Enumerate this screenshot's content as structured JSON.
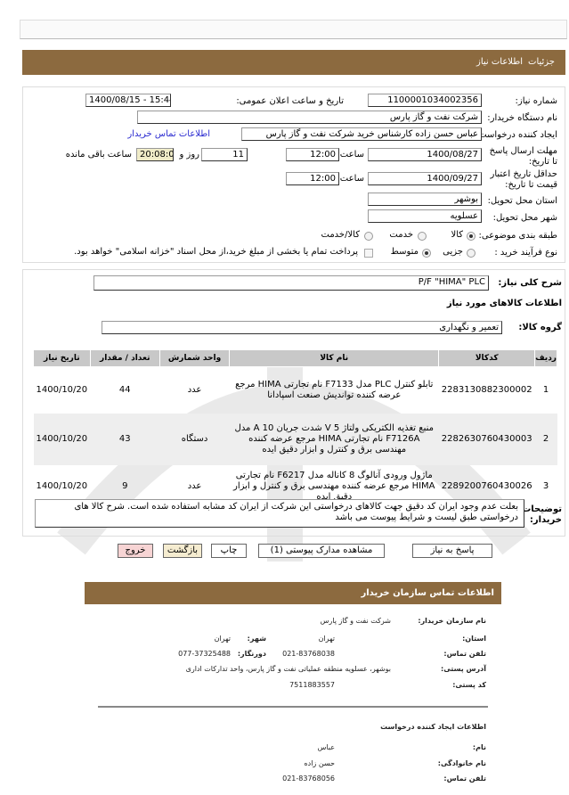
{
  "header": {
    "tab_details": "جزئیات",
    "tab_info": "اطلاعات نیاز"
  },
  "colors": {
    "brand": "#8c6a3f"
  },
  "form": {
    "need_number_label": "شماره نیاز:",
    "need_number": "1100001034002356",
    "announce_label": "تاریخ و ساعت اعلان عمومی:",
    "announce_value": "1400/08/15 - 15:44",
    "buyer_org_label": "نام دستگاه خریدار:",
    "buyer_org": "شرکت نفت و گاز پارس",
    "creator_label": "ایجاد کننده درخواست:",
    "creator": "عباس حسن زاده کارشناس خرید شرکت نفت و گاز پارس",
    "buyer_contact_link": "اطلاعات تماس خریدار",
    "deadline_label": "مهلت ارسال پاسخ تا تاریخ:",
    "deadline_date": "1400/08/27",
    "time_label": "ساعت",
    "deadline_time": "12:00",
    "days": "11",
    "days_label": "روز و",
    "remaining": "20:08:00",
    "remaining_label": "ساعت باقی مانده",
    "validity_label": "حداقل تاریخ اعتبار قیمت تا تاریخ:",
    "validity_date": "1400/09/27",
    "validity_time": "12:00",
    "province_label": "استان محل تحویل:",
    "province": "بوشهر",
    "city_label": "شهر محل تحویل:",
    "city": "عسلویه",
    "category_label": "طبقه بندی موضوعی:",
    "category_options": [
      "کالا",
      "خدمت",
      "کالا/خدمت"
    ],
    "category_selected": "کالا",
    "process_label": "نوع فرآیند خرید :",
    "process_options": [
      "جزیی",
      "متوسط"
    ],
    "process_selected": "متوسط",
    "payment_note": "پرداخت تمام یا بخشی از مبلغ خرید،از محل اسناد \"خزانه اسلامی\" خواهد بود."
  },
  "summary": {
    "label": "شرح کلی نیاز:",
    "value": "P/F \"HIMA\" PLC",
    "goods_info": "اطلاعات کالاهای مورد نیاز",
    "group_label": "گروه کالا:",
    "group_value": "تعمیر و نگهداری"
  },
  "table": {
    "headers": [
      "ردیف",
      "کدکالا",
      "نام کالا",
      "واحد شمارش",
      "تعداد / مقدار",
      "تاریخ نیاز"
    ],
    "rows": [
      {
        "row": "1",
        "code": "2283130882300002",
        "name": "تابلو کنترل PLC مدل F7133 نام تجارتی HIMA مرجع عرضه کننده توانديش صنعت اسپادانا",
        "unit": "عدد",
        "qty": "44",
        "date": "1400/10/20"
      },
      {
        "row": "2",
        "code": "2282630760430003",
        "name": "منبع تغذیه الکتریکی ولتاژ 5 V شدت جریان 10 A مدل F7126A نام تجارتی HIMA مرجع عرضه کننده مهندسی برق و کنترل و ابزار دقیق ایده",
        "unit": "دستگاه",
        "qty": "43",
        "date": "1400/10/20"
      },
      {
        "row": "3",
        "code": "2289200760430026",
        "name": "ماژول ورودی آنالوگ 8 کاناله مدل F6217 نام تجارتی HIMA مرجع عرضه کننده مهندسی برق و کنترل و ابزار دقیق ایده",
        "unit": "عدد",
        "qty": "9",
        "date": "1400/10/20"
      }
    ]
  },
  "notes": {
    "label": "توضیحات خریدار:",
    "value": "بعلت عدم وجود ایران کد دقیق جهت کالاهای درخواستی این شرکت از ایران کد مشابه استفاده شده است. شرح کالا های درخواستی طبق لیست و شرایط پیوست می باشد"
  },
  "buttons": {
    "reply": "پاسخ به نیاز",
    "attachments": "مشاهده مدارک پیوستی (1)",
    "print": "چاپ",
    "back": "بازگشت",
    "exit": "خروج"
  },
  "contact": {
    "title": "اطلاعات تماس سازمان خریدار",
    "org_label": "نام سازمان خریدار:",
    "org": "شرکت نفت و گاز پارس",
    "province_label": "استان:",
    "province": "تهران",
    "city_label": "شهر:",
    "city": "تهران",
    "phone_label": "تلفن تماس:",
    "phone": "021-83768038",
    "fax_label": "دورنگار:",
    "fax": "077-37325488",
    "address_label": "آدرس پستی:",
    "address": "بوشهر، عسلویه منطقه عملیاتی نفت و گاز پارس، واحد تدارکات اداری",
    "postal_label": "کد پستی:",
    "postal": "7511883557",
    "creator_title": "اطلاعات ایجاد کننده درخواست",
    "name_label": "نام:",
    "name": "عباس",
    "family_label": "نام خانوادگی:",
    "family": "حسن زاده",
    "creator_phone_label": "تلفن تماس:",
    "creator_phone": "021-83768056"
  }
}
